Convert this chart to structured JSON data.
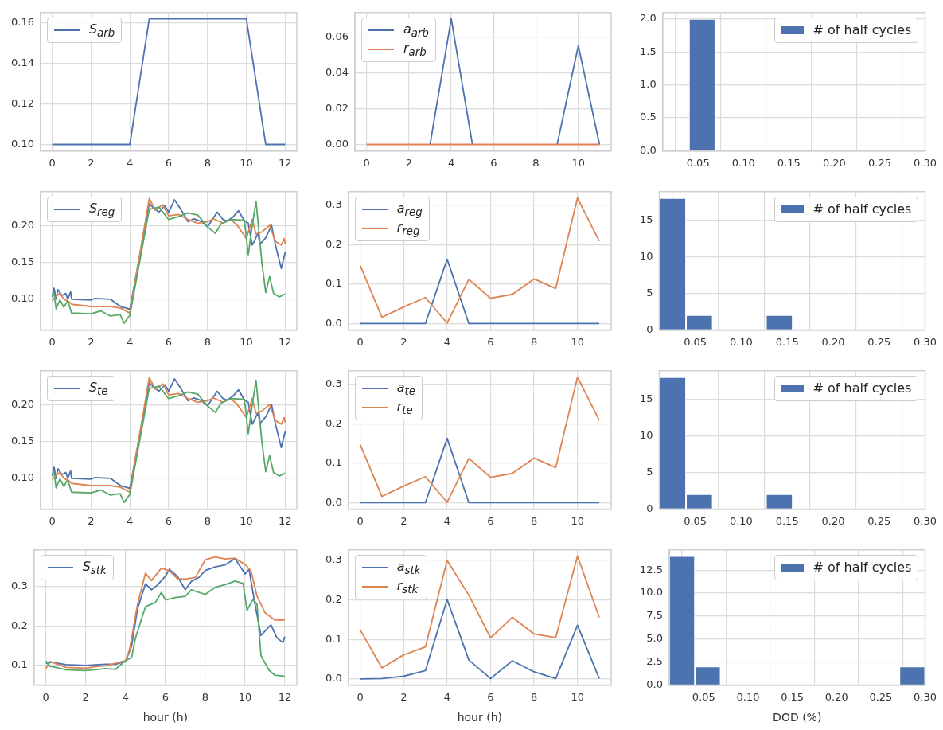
{
  "chart_data": [
    {
      "type": "line",
      "xlim": [
        -0.6,
        12.6
      ],
      "xticks": [
        0,
        2,
        4,
        6,
        8,
        10,
        12
      ],
      "ylim": [
        0.0969,
        0.1651
      ],
      "yticks": [
        {
          "value": 0.1,
          "label": "0.10"
        },
        {
          "value": 0.12,
          "label": "0.12"
        },
        {
          "value": 0.14,
          "label": "0.14"
        },
        {
          "value": 0.16,
          "label": "0.16"
        }
      ],
      "grid": true,
      "legend": "top left",
      "x": [
        0,
        1,
        2,
        3,
        4,
        5,
        6,
        7,
        8,
        9,
        10,
        11,
        12
      ],
      "series": [
        {
          "name": "S$_{arb}$",
          "color": "#4c72b0",
          "values": [
            0.1,
            0.1,
            0.1,
            0.1,
            0.1,
            0.162,
            0.162,
            0.162,
            0.162,
            0.162,
            0.162,
            0.1,
            0.1
          ]
        }
      ]
    },
    {
      "type": "line",
      "x": [
        0,
        1,
        2,
        3,
        4,
        5,
        6,
        7,
        8,
        9,
        10,
        11
      ],
      "xlim": [
        -0.55,
        11.55
      ],
      "xticks": [
        0,
        2,
        4,
        6,
        8,
        10
      ],
      "ylim": [
        -0.0035,
        0.0735
      ],
      "yticks": [
        {
          "value": 0,
          "label": "0.00"
        },
        {
          "value": 0.02,
          "label": "0.02"
        },
        {
          "value": 0.04,
          "label": "0.04"
        },
        {
          "value": 0.06,
          "label": "0.06"
        }
      ],
      "grid": true,
      "legend": "top left",
      "series": [
        {
          "name": "a$_{arb}$",
          "color": "#4c72b0",
          "values": [
            null,
            null,
            null,
            0,
            0.07,
            0,
            null,
            null,
            null,
            0,
            0.055,
            0
          ]
        },
        {
          "name": "r$_{arb}$",
          "color": "#dd8452",
          "values": [
            0,
            0,
            0,
            0,
            0,
            0,
            0,
            0,
            0,
            0,
            0,
            0
          ]
        }
      ]
    },
    {
      "type": "histogram",
      "bins": [
        0.011,
        0.04,
        0.069,
        0.098,
        0.127,
        0.156,
        0.184,
        0.213,
        0.242,
        0.271,
        0.3
      ],
      "xlim": [
        0.011,
        0.3
      ],
      "xticks": [
        {
          "value": 0.05,
          "label": "0.05"
        },
        {
          "value": 0.1,
          "label": "0.10"
        },
        {
          "value": 0.15,
          "label": "0.15"
        },
        {
          "value": 0.2,
          "label": "0.20"
        },
        {
          "value": 0.25,
          "label": "0.25"
        },
        {
          "value": 0.3,
          "label": "0.30"
        }
      ],
      "ylim": [
        0,
        2.1
      ],
      "yticks": [
        {
          "value": 0,
          "label": "0.0"
        },
        {
          "value": 0.5,
          "label": "0.5"
        },
        {
          "value": 1,
          "label": "1.0"
        },
        {
          "value": 1.5,
          "label": "1.5"
        },
        {
          "value": 2,
          "label": "2.0"
        }
      ],
      "grid": true,
      "legend": "top right",
      "series": [
        {
          "name": "# of half cycles",
          "color": "#4c72b0",
          "values": [
            0,
            2,
            0,
            0,
            0,
            0,
            0,
            0,
            0,
            0
          ]
        }
      ]
    },
    {
      "type": "line",
      "xlim": [
        -0.6,
        12.6
      ],
      "xticks": [
        0,
        2,
        4,
        6,
        8,
        10,
        12
      ],
      "ylim": [
        0.058,
        0.247
      ],
      "yticks": [
        {
          "value": 0.1,
          "label": "0.10"
        },
        {
          "value": 0.15,
          "label": "0.15"
        },
        {
          "value": 0.2,
          "label": "0.20"
        }
      ],
      "grid": true,
      "legend": "top left",
      "series": [
        {
          "name": "S$_{reg}$",
          "color": "#4c72b0",
          "x": [
            0,
            0.1,
            0.2,
            0.3,
            0.5,
            0.7,
            0.8,
            0.95,
            1,
            2,
            2.2,
            3,
            3.3,
            3.6,
            3.8,
            4,
            5,
            5.2,
            5.5,
            5.8,
            6,
            6.3,
            6.6,
            7,
            7.3,
            7.7,
            8,
            8.3,
            8.5,
            8.8,
            9,
            9.3,
            9.6,
            9.9,
            10.1,
            10.3,
            10.4,
            10.6,
            10.7,
            11,
            11.3,
            11.5,
            11.8,
            12
          ],
          "values": [
            0.103,
            0.115,
            0.1,
            0.113,
            0.105,
            0.108,
            0.1,
            0.11,
            0.1,
            0.099,
            0.101,
            0.1,
            0.094,
            0.089,
            0.088,
            0.086,
            0.231,
            0.225,
            0.219,
            0.228,
            0.219,
            0.236,
            0.224,
            0.206,
            0.21,
            0.206,
            0.199,
            0.211,
            0.219,
            0.209,
            0.207,
            0.212,
            0.221,
            0.207,
            0.204,
            0.174,
            0.179,
            0.19,
            0.175,
            0.184,
            0.201,
            0.174,
            0.142,
            0.164
          ]
        },
        {
          "color": "#dd8452",
          "x": [
            0,
            0.2,
            0.4,
            0.6,
            0.9,
            1,
            2,
            3,
            3.5,
            4,
            5,
            5.3,
            5.7,
            6,
            6.5,
            7,
            7.5,
            8,
            8.3,
            8.8,
            9.2,
            9.5,
            10,
            10.3,
            10.5,
            10.8,
            11.2,
            11.5,
            11.8,
            11.95,
            12
          ],
          "values": [
            0.098,
            0.104,
            0.108,
            0.1,
            0.096,
            0.093,
            0.09,
            0.09,
            0.088,
            0.081,
            0.238,
            0.222,
            0.229,
            0.214,
            0.216,
            0.209,
            0.204,
            0.206,
            0.21,
            0.204,
            0.209,
            0.202,
            0.183,
            0.209,
            0.189,
            0.192,
            0.201,
            0.179,
            0.174,
            0.183,
            0.176
          ]
        },
        {
          "color": "#55a868",
          "x": [
            0,
            0.1,
            0.2,
            0.4,
            0.6,
            0.8,
            1,
            2,
            2.5,
            3,
            3.5,
            3.7,
            4,
            5,
            5.5,
            6,
            6.5,
            7,
            7.5,
            8,
            8.4,
            8.7,
            9.2,
            9.9,
            10.1,
            10.3,
            10.5,
            10.8,
            11,
            11.2,
            11.4,
            11.7,
            12
          ],
          "values": [
            0.104,
            0.108,
            0.087,
            0.099,
            0.089,
            0.098,
            0.081,
            0.08,
            0.084,
            0.077,
            0.079,
            0.067,
            0.078,
            0.223,
            0.226,
            0.209,
            0.213,
            0.218,
            0.215,
            0.199,
            0.19,
            0.203,
            0.209,
            0.208,
            0.161,
            0.2,
            0.234,
            0.15,
            0.109,
            0.131,
            0.108,
            0.103,
            0.107
          ]
        }
      ]
    },
    {
      "type": "line",
      "x": [
        0,
        1,
        2,
        3,
        4,
        5,
        6,
        7,
        8,
        9,
        10,
        11
      ],
      "xlim": [
        -0.55,
        11.55
      ],
      "xticks": [
        0,
        2,
        4,
        6,
        8,
        10
      ],
      "ylim": [
        -0.016,
        0.334
      ],
      "yticks": [
        {
          "value": 0,
          "label": "0.0"
        },
        0.1,
        0.2,
        0.3
      ],
      "grid": true,
      "legend": "top left",
      "series": [
        {
          "name": "a$_{reg}$",
          "color": "#4c72b0",
          "values": [
            0,
            0,
            0,
            0,
            0.163,
            0,
            0,
            0,
            0,
            0,
            0,
            0
          ]
        },
        {
          "name": "r$_{reg}$",
          "color": "#dd8452",
          "values": [
            0.147,
            0.016,
            0.042,
            0.066,
            0.001,
            0.112,
            0.064,
            0.074,
            0.113,
            0.089,
            0.318,
            0.209
          ]
        }
      ]
    },
    {
      "type": "histogram",
      "bins": [
        0.011,
        0.04,
        0.069,
        0.098,
        0.127,
        0.156,
        0.184,
        0.213,
        0.242,
        0.271,
        0.3
      ],
      "xlim": [
        0.011,
        0.3
      ],
      "xticks": [
        {
          "value": 0.05,
          "label": "0.05"
        },
        {
          "value": 0.1,
          "label": "0.10"
        },
        {
          "value": 0.15,
          "label": "0.15"
        },
        {
          "value": 0.2,
          "label": "0.20"
        },
        {
          "value": 0.25,
          "label": "0.25"
        },
        {
          "value": 0.3,
          "label": "0.30"
        }
      ],
      "ylim": [
        0,
        18.9
      ],
      "yticks": [
        0,
        5,
        10,
        15
      ],
      "grid": true,
      "legend": "top right",
      "series": [
        {
          "name": "# of half cycles",
          "color": "#4c72b0",
          "values": [
            18,
            2,
            0,
            0,
            2,
            0,
            0,
            0,
            0,
            0
          ]
        }
      ]
    },
    {
      "type": "line",
      "xlim": [
        -0.6,
        12.6
      ],
      "xticks": [
        0,
        2,
        4,
        6,
        8,
        10,
        12
      ],
      "ylim": [
        0.058,
        0.247
      ],
      "yticks": [
        {
          "value": 0.1,
          "label": "0.10"
        },
        {
          "value": 0.15,
          "label": "0.15"
        },
        {
          "value": 0.2,
          "label": "0.20"
        }
      ],
      "grid": true,
      "legend": "top left",
      "series": [
        {
          "name": "S$_{te}$",
          "color": "#4c72b0",
          "x": [
            0,
            0.1,
            0.2,
            0.3,
            0.5,
            0.7,
            0.8,
            0.95,
            1,
            2,
            2.2,
            3,
            3.3,
            3.6,
            3.8,
            4,
            5,
            5.2,
            5.5,
            5.8,
            6,
            6.3,
            6.6,
            7,
            7.3,
            7.7,
            8,
            8.3,
            8.5,
            8.8,
            9,
            9.3,
            9.6,
            9.9,
            10.1,
            10.3,
            10.4,
            10.6,
            10.7,
            11,
            11.3,
            11.5,
            11.8,
            12
          ],
          "values": [
            0.103,
            0.115,
            0.1,
            0.113,
            0.105,
            0.108,
            0.1,
            0.11,
            0.1,
            0.099,
            0.101,
            0.1,
            0.094,
            0.089,
            0.088,
            0.086,
            0.231,
            0.225,
            0.219,
            0.228,
            0.219,
            0.236,
            0.224,
            0.206,
            0.21,
            0.206,
            0.199,
            0.211,
            0.219,
            0.209,
            0.207,
            0.212,
            0.221,
            0.207,
            0.204,
            0.174,
            0.179,
            0.19,
            0.175,
            0.184,
            0.201,
            0.174,
            0.142,
            0.164
          ]
        },
        {
          "color": "#dd8452",
          "x": [
            0,
            0.2,
            0.4,
            0.6,
            0.9,
            1,
            2,
            3,
            3.5,
            4,
            5,
            5.3,
            5.7,
            6,
            6.5,
            7,
            7.5,
            8,
            8.3,
            8.8,
            9.2,
            9.5,
            10,
            10.3,
            10.5,
            10.8,
            11.2,
            11.5,
            11.8,
            11.95,
            12
          ],
          "values": [
            0.098,
            0.104,
            0.108,
            0.1,
            0.096,
            0.093,
            0.09,
            0.09,
            0.088,
            0.081,
            0.238,
            0.222,
            0.229,
            0.214,
            0.216,
            0.209,
            0.204,
            0.206,
            0.21,
            0.204,
            0.209,
            0.202,
            0.183,
            0.209,
            0.189,
            0.192,
            0.201,
            0.179,
            0.174,
            0.183,
            0.176
          ]
        },
        {
          "color": "#55a868",
          "x": [
            0,
            0.1,
            0.2,
            0.4,
            0.6,
            0.8,
            1,
            2,
            2.5,
            3,
            3.5,
            3.7,
            4,
            5,
            5.5,
            6,
            6.5,
            7,
            7.5,
            8,
            8.4,
            8.7,
            9.2,
            9.9,
            10.1,
            10.3,
            10.5,
            10.8,
            11,
            11.2,
            11.4,
            11.7,
            12
          ],
          "values": [
            0.104,
            0.108,
            0.087,
            0.099,
            0.089,
            0.098,
            0.081,
            0.08,
            0.084,
            0.077,
            0.079,
            0.067,
            0.078,
            0.223,
            0.226,
            0.209,
            0.213,
            0.218,
            0.215,
            0.199,
            0.19,
            0.203,
            0.209,
            0.208,
            0.161,
            0.2,
            0.234,
            0.15,
            0.109,
            0.131,
            0.108,
            0.103,
            0.107
          ]
        }
      ]
    },
    {
      "type": "line",
      "x": [
        0,
        1,
        2,
        3,
        4,
        5,
        6,
        7,
        8,
        9,
        10,
        11
      ],
      "xlim": [
        -0.55,
        11.55
      ],
      "xticks": [
        0,
        2,
        4,
        6,
        8,
        10
      ],
      "ylim": [
        -0.016,
        0.334
      ],
      "yticks": [
        {
          "value": 0,
          "label": "0.0"
        },
        0.1,
        0.2,
        0.3
      ],
      "grid": true,
      "legend": "top left",
      "series": [
        {
          "name": "a$_{te}$",
          "color": "#4c72b0",
          "values": [
            0,
            0,
            0,
            0,
            0.163,
            0,
            0,
            0,
            0,
            0,
            0,
            0
          ]
        },
        {
          "name": "r$_{te}$",
          "color": "#dd8452",
          "values": [
            0.147,
            0.016,
            0.042,
            0.066,
            0.001,
            0.112,
            0.064,
            0.074,
            0.113,
            0.089,
            0.318,
            0.209
          ]
        }
      ]
    },
    {
      "type": "histogram",
      "bins": [
        0.011,
        0.04,
        0.069,
        0.098,
        0.127,
        0.156,
        0.184,
        0.213,
        0.242,
        0.271,
        0.3
      ],
      "xlim": [
        0.011,
        0.3
      ],
      "xticks": [
        {
          "value": 0.05,
          "label": "0.05"
        },
        {
          "value": 0.1,
          "label": "0.10"
        },
        {
          "value": 0.15,
          "label": "0.15"
        },
        {
          "value": 0.2,
          "label": "0.20"
        },
        {
          "value": 0.25,
          "label": "0.25"
        },
        {
          "value": 0.3,
          "label": "0.30"
        }
      ],
      "ylim": [
        0,
        18.9
      ],
      "yticks": [
        0,
        5,
        10,
        15
      ],
      "grid": true,
      "legend": "top right",
      "series": [
        {
          "name": "# of half cycles",
          "color": "#4c72b0",
          "values": [
            18,
            2,
            0,
            0,
            2,
            0,
            0,
            0,
            0,
            0
          ]
        }
      ]
    },
    {
      "type": "line",
      "xlabel": "hour (h)",
      "xlim": [
        -0.6,
        12.6
      ],
      "xticks": [
        0,
        2,
        4,
        6,
        8,
        10,
        12
      ],
      "ylim": [
        0.05,
        0.393
      ],
      "yticks": [
        0.1,
        0.2,
        0.3
      ],
      "grid": true,
      "legend": "top left",
      "series": [
        {
          "name": "S$_{stk}$",
          "color": "#4c72b0",
          "x": [
            0,
            0.3,
            1,
            2,
            3,
            3.5,
            4,
            4.3,
            4.6,
            5,
            5.3,
            5.6,
            6,
            6.2,
            6.6,
            7,
            7.3,
            7.7,
            8,
            8.5,
            9,
            9.5,
            10,
            10.2,
            10.5,
            10.8,
            11.3,
            11.6,
            11.9,
            12
          ],
          "values": [
            0.105,
            0.108,
            0.102,
            0.1,
            0.103,
            0.103,
            0.11,
            0.149,
            0.243,
            0.307,
            0.292,
            0.304,
            0.326,
            0.344,
            0.326,
            0.292,
            0.313,
            0.324,
            0.341,
            0.35,
            0.355,
            0.371,
            0.332,
            0.344,
            0.255,
            0.176,
            0.203,
            0.17,
            0.158,
            0.173
          ]
        },
        {
          "color": "#dd8452",
          "x": [
            0,
            0.2,
            1,
            2,
            2.5,
            3,
            4,
            4.2,
            4.6,
            5,
            5.3,
            5.8,
            6.2,
            6.6,
            7,
            7.5,
            8,
            8.5,
            9,
            9.5,
            10,
            10.3,
            10.6,
            11,
            11.5,
            12
          ],
          "values": [
            0.092,
            0.11,
            0.095,
            0.093,
            0.097,
            0.099,
            0.112,
            0.14,
            0.255,
            0.334,
            0.315,
            0.347,
            0.34,
            0.32,
            0.319,
            0.323,
            0.368,
            0.375,
            0.37,
            0.372,
            0.356,
            0.34,
            0.276,
            0.234,
            0.215,
            0.215
          ]
        },
        {
          "color": "#55a868",
          "x": [
            0,
            0.2,
            0.5,
            1,
            2,
            3,
            3.5,
            4,
            4.3,
            4.5,
            5,
            5.5,
            5.8,
            6,
            6.5,
            7,
            7.3,
            8,
            8.5,
            9,
            9.5,
            9.9,
            10.1,
            10.4,
            10.6,
            10.8,
            11.2,
            11.5,
            12
          ],
          "values": [
            0.111,
            0.098,
            0.095,
            0.089,
            0.087,
            0.092,
            0.09,
            0.112,
            0.12,
            0.17,
            0.249,
            0.26,
            0.285,
            0.266,
            0.272,
            0.275,
            0.292,
            0.28,
            0.298,
            0.305,
            0.314,
            0.308,
            0.24,
            0.267,
            0.256,
            0.125,
            0.088,
            0.075,
            0.072
          ]
        }
      ]
    },
    {
      "type": "line",
      "xlabel": "hour (h)",
      "x": [
        0,
        1,
        2,
        3,
        4,
        5,
        6,
        7,
        8,
        9,
        10,
        11
      ],
      "xlim": [
        -0.55,
        11.55
      ],
      "xticks": [
        0,
        2,
        4,
        6,
        8,
        10
      ],
      "ylim": [
        -0.0155,
        0.3265
      ],
      "yticks": [
        {
          "value": 0,
          "label": "0.0"
        },
        0.1,
        0.2,
        0.3
      ],
      "grid": true,
      "legend": "top left",
      "series": [
        {
          "name": "a$_{stk}$",
          "color": "#4c72b0",
          "values": [
            0,
            0.001,
            0.007,
            0.021,
            0.201,
            0.048,
            0.001,
            0.046,
            0.018,
            0.001,
            0.136,
            0.001
          ]
        },
        {
          "name": "r$_{stk}$",
          "color": "#dd8452",
          "values": [
            0.124,
            0.028,
            0.061,
            0.081,
            0.3,
            0.212,
            0.104,
            0.156,
            0.114,
            0.105,
            0.311,
            0.156
          ]
        }
      ]
    },
    {
      "type": "histogram",
      "xlabel": "DOD (%)",
      "bins": [
        0.011,
        0.04,
        0.069,
        0.098,
        0.127,
        0.156,
        0.184,
        0.213,
        0.242,
        0.271,
        0.3
      ],
      "xlim": [
        0.011,
        0.3
      ],
      "xticks": [
        {
          "value": 0.05,
          "label": "0.05"
        },
        {
          "value": 0.1,
          "label": "0.10"
        },
        {
          "value": 0.15,
          "label": "0.15"
        },
        {
          "value": 0.2,
          "label": "0.20"
        },
        {
          "value": 0.25,
          "label": "0.25"
        },
        {
          "value": 0.3,
          "label": "0.30"
        }
      ],
      "ylim": [
        0,
        14.7
      ],
      "yticks": [
        {
          "value": 0,
          "label": "0.0"
        },
        {
          "value": 2.5,
          "label": "2.5"
        },
        {
          "value": 5,
          "label": "5.0"
        },
        {
          "value": 7.5,
          "label": "7.5"
        },
        {
          "value": 10,
          "label": "10.0"
        },
        {
          "value": 12.5,
          "label": "12.5"
        }
      ],
      "grid": true,
      "legend": "top right",
      "series": [
        {
          "name": "# of half cycles",
          "color": "#4c72b0",
          "values": [
            14,
            2,
            0,
            0,
            0,
            0,
            0,
            0,
            0,
            2
          ]
        }
      ]
    }
  ]
}
